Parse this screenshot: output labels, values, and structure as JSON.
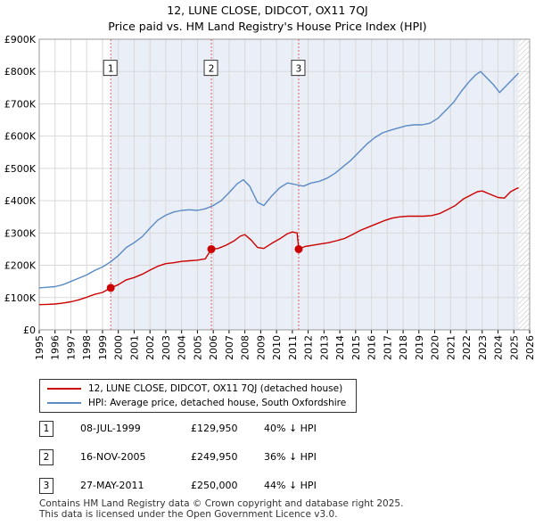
{
  "header": {
    "title_line1": "12, LUNE CLOSE, DIDCOT, OX11 7QJ",
    "title_line2": "Price paid vs. HM Land Registry's House Price Index (HPI)"
  },
  "colors": {
    "price_line": "#cc0000",
    "hpi_line": "#5b8ac4",
    "shade": "#e9eef7",
    "grid": "#d9d9d9",
    "vline": "#e06060"
  },
  "chart_data": {
    "type": "line",
    "title": "12, LUNE CLOSE, DIDCOT, OX11 7QJ — Price paid vs. HM Land Registry's House Price Index (HPI)",
    "xlim": [
      1995,
      2026
    ],
    "ylim": [
      0,
      900000
    ],
    "x_ticks": [
      "1995",
      "1996",
      "1997",
      "1998",
      "1999",
      "2000",
      "2001",
      "2002",
      "2003",
      "2004",
      "2005",
      "2006",
      "2007",
      "2008",
      "2009",
      "2010",
      "2011",
      "2012",
      "2013",
      "2014",
      "2015",
      "2016",
      "2017",
      "2018",
      "2019",
      "2020",
      "2021",
      "2022",
      "2023",
      "2024",
      "2025",
      "2026"
    ],
    "y_ticks": [
      {
        "value": 0,
        "label": "£0"
      },
      {
        "value": 100000,
        "label": "£100K"
      },
      {
        "value": 200000,
        "label": "£200K"
      },
      {
        "value": 300000,
        "label": "£300K"
      },
      {
        "value": 400000,
        "label": "£400K"
      },
      {
        "value": 500000,
        "label": "£500K"
      },
      {
        "value": 600000,
        "label": "£600K"
      },
      {
        "value": 700000,
        "label": "£700K"
      },
      {
        "value": 800000,
        "label": "£800K"
      },
      {
        "value": 900000,
        "label": "£900K"
      }
    ],
    "shaded_range": [
      1999.52,
      2025.3
    ],
    "hatch_from": 2025.3,
    "series": [
      {
        "name": "12, LUNE CLOSE, DIDCOT, OX11 7QJ (detached house)",
        "color": "#cc0000",
        "points": [
          [
            1995.0,
            78000
          ],
          [
            1995.5,
            79000
          ],
          [
            1996.0,
            80000
          ],
          [
            1996.5,
            83000
          ],
          [
            1997.0,
            87000
          ],
          [
            1997.5,
            93000
          ],
          [
            1998.0,
            101000
          ],
          [
            1998.5,
            110000
          ],
          [
            1999.0,
            116000
          ],
          [
            1999.52,
            129950
          ],
          [
            2000.0,
            140000
          ],
          [
            2000.5,
            155000
          ],
          [
            2001.0,
            162000
          ],
          [
            2001.5,
            172000
          ],
          [
            2002.0,
            185000
          ],
          [
            2002.5,
            197000
          ],
          [
            2003.0,
            205000
          ],
          [
            2003.5,
            208000
          ],
          [
            2004.0,
            212000
          ],
          [
            2004.5,
            214000
          ],
          [
            2005.0,
            216000
          ],
          [
            2005.5,
            220000
          ],
          [
            2005.88,
            249950
          ],
          [
            2006.3,
            252000
          ],
          [
            2006.8,
            262000
          ],
          [
            2007.3,
            275000
          ],
          [
            2007.7,
            290000
          ],
          [
            2008.0,
            295000
          ],
          [
            2008.4,
            278000
          ],
          [
            2008.8,
            255000
          ],
          [
            2009.2,
            252000
          ],
          [
            2009.7,
            268000
          ],
          [
            2010.2,
            282000
          ],
          [
            2010.7,
            298000
          ],
          [
            2011.0,
            303000
          ],
          [
            2011.3,
            300000
          ],
          [
            2011.4,
            250000
          ],
          [
            2011.8,
            258000
          ],
          [
            2012.3,
            262000
          ],
          [
            2012.8,
            266000
          ],
          [
            2013.3,
            270000
          ],
          [
            2013.8,
            276000
          ],
          [
            2014.3,
            283000
          ],
          [
            2014.8,
            295000
          ],
          [
            2015.3,
            308000
          ],
          [
            2015.8,
            318000
          ],
          [
            2016.3,
            328000
          ],
          [
            2016.8,
            338000
          ],
          [
            2017.3,
            346000
          ],
          [
            2017.8,
            350000
          ],
          [
            2018.3,
            352000
          ],
          [
            2018.8,
            352000
          ],
          [
            2019.3,
            352000
          ],
          [
            2019.8,
            354000
          ],
          [
            2020.3,
            360000
          ],
          [
            2020.8,
            372000
          ],
          [
            2021.3,
            385000
          ],
          [
            2021.8,
            405000
          ],
          [
            2022.3,
            418000
          ],
          [
            2022.7,
            428000
          ],
          [
            2023.0,
            430000
          ],
          [
            2023.5,
            420000
          ],
          [
            2024.0,
            410000
          ],
          [
            2024.4,
            408000
          ],
          [
            2024.8,
            428000
          ],
          [
            2025.2,
            438000
          ],
          [
            2025.3,
            440000
          ]
        ],
        "sales": [
          [
            1999.52,
            129950
          ],
          [
            2005.88,
            249950
          ],
          [
            2011.4,
            250000
          ]
        ]
      },
      {
        "name": "HPI: Average price, detached house, South Oxfordshire",
        "color": "#5b8ac4",
        "points": [
          [
            1995.0,
            130000
          ],
          [
            1995.5,
            132000
          ],
          [
            1996.0,
            134000
          ],
          [
            1996.5,
            140000
          ],
          [
            1997.0,
            150000
          ],
          [
            1997.5,
            160000
          ],
          [
            1998.0,
            170000
          ],
          [
            1998.5,
            184000
          ],
          [
            1999.0,
            195000
          ],
          [
            1999.5,
            210000
          ],
          [
            2000.0,
            230000
          ],
          [
            2000.5,
            255000
          ],
          [
            2001.0,
            270000
          ],
          [
            2001.5,
            288000
          ],
          [
            2002.0,
            315000
          ],
          [
            2002.5,
            340000
          ],
          [
            2003.0,
            355000
          ],
          [
            2003.5,
            365000
          ],
          [
            2004.0,
            370000
          ],
          [
            2004.5,
            372000
          ],
          [
            2005.0,
            370000
          ],
          [
            2005.5,
            375000
          ],
          [
            2006.0,
            385000
          ],
          [
            2006.5,
            400000
          ],
          [
            2007.0,
            425000
          ],
          [
            2007.5,
            452000
          ],
          [
            2007.9,
            465000
          ],
          [
            2008.3,
            445000
          ],
          [
            2008.8,
            395000
          ],
          [
            2009.2,
            385000
          ],
          [
            2009.7,
            415000
          ],
          [
            2010.2,
            440000
          ],
          [
            2010.7,
            455000
          ],
          [
            2011.2,
            450000
          ],
          [
            2011.7,
            445000
          ],
          [
            2012.2,
            455000
          ],
          [
            2012.7,
            460000
          ],
          [
            2013.2,
            470000
          ],
          [
            2013.7,
            485000
          ],
          [
            2014.2,
            505000
          ],
          [
            2014.7,
            525000
          ],
          [
            2015.2,
            550000
          ],
          [
            2015.7,
            575000
          ],
          [
            2016.2,
            595000
          ],
          [
            2016.7,
            610000
          ],
          [
            2017.2,
            618000
          ],
          [
            2017.7,
            625000
          ],
          [
            2018.2,
            632000
          ],
          [
            2018.7,
            635000
          ],
          [
            2019.2,
            635000
          ],
          [
            2019.7,
            640000
          ],
          [
            2020.2,
            655000
          ],
          [
            2020.7,
            680000
          ],
          [
            2021.2,
            705000
          ],
          [
            2021.7,
            740000
          ],
          [
            2022.2,
            770000
          ],
          [
            2022.6,
            790000
          ],
          [
            2022.9,
            800000
          ],
          [
            2023.3,
            780000
          ],
          [
            2023.7,
            760000
          ],
          [
            2024.1,
            735000
          ],
          [
            2024.5,
            755000
          ],
          [
            2024.9,
            775000
          ],
          [
            2025.2,
            790000
          ],
          [
            2025.3,
            795000
          ]
        ]
      }
    ],
    "markers": [
      {
        "label": "1",
        "x": 1999.52,
        "y_box": 810000
      },
      {
        "label": "2",
        "x": 2005.88,
        "y_box": 810000
      },
      {
        "label": "3",
        "x": 2011.4,
        "y_box": 810000
      }
    ]
  },
  "legend": {
    "items": [
      {
        "label": "12, LUNE CLOSE, DIDCOT, OX11 7QJ (detached house)"
      },
      {
        "label": "HPI: Average price, detached house, South Oxfordshire"
      }
    ]
  },
  "sales_table": {
    "rows": [
      {
        "marker": "1",
        "date": "08-JUL-1999",
        "price": "£129,950",
        "hpi": "40% ↓ HPI"
      },
      {
        "marker": "2",
        "date": "16-NOV-2005",
        "price": "£249,950",
        "hpi": "36% ↓ HPI"
      },
      {
        "marker": "3",
        "date": "27-MAY-2011",
        "price": "£250,000",
        "hpi": "44% ↓ HPI"
      }
    ]
  },
  "footer": {
    "line1": "Contains HM Land Registry data © Crown copyright and database right 2025.",
    "line2": "This data is licensed under the Open Government Licence v3.0."
  }
}
